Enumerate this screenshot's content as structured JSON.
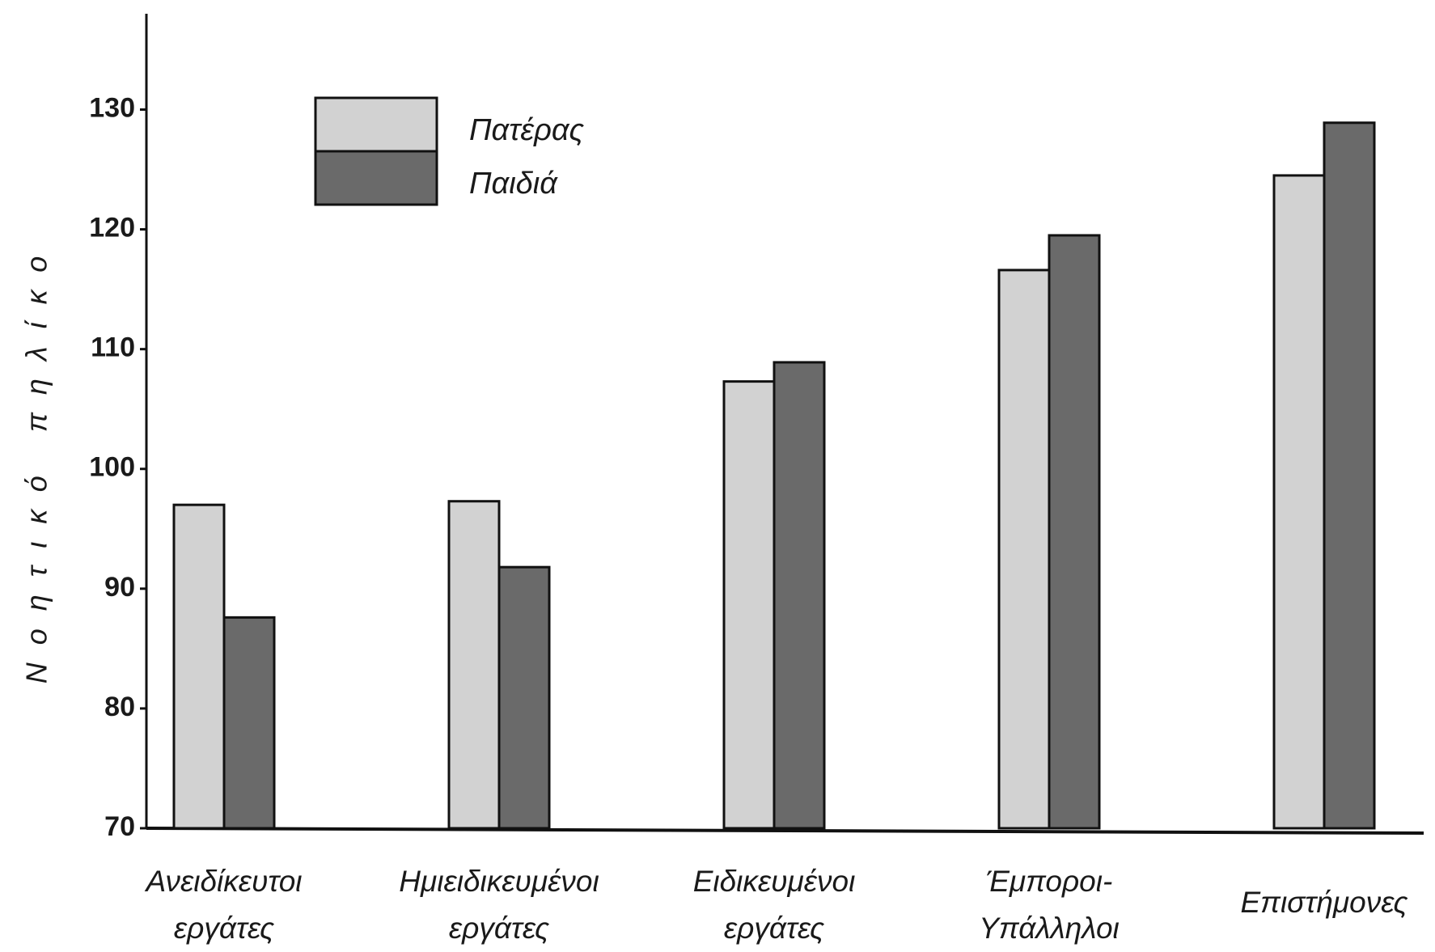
{
  "chart_data": {
    "type": "bar",
    "y_label": "Νοητικό πηλίκο",
    "categories": [
      [
        "Ανειδίκευτοι",
        "εργάτες"
      ],
      [
        "Ημιειδικευμένοι",
        "εργάτες"
      ],
      [
        "Ειδικευμένοι",
        "εργάτες"
      ],
      [
        "Έμποροι-",
        "Υπάλληλοι"
      ],
      [
        "Επιστήμονες"
      ]
    ],
    "series": [
      {
        "name": "Πατέρας",
        "color": "#d2d2d2",
        "values": [
          97,
          97.3,
          107.3,
          116.6,
          124.5
        ]
      },
      {
        "name": "Παιδιά",
        "color": "#6a6a6a",
        "values": [
          87.6,
          91.8,
          108.9,
          119.5,
          128.9
        ]
      }
    ],
    "ylim": [
      70,
      138
    ],
    "yticks": [
      70,
      80,
      90,
      100,
      110,
      120,
      130
    ],
    "grid": false,
    "legend": "upper left"
  }
}
